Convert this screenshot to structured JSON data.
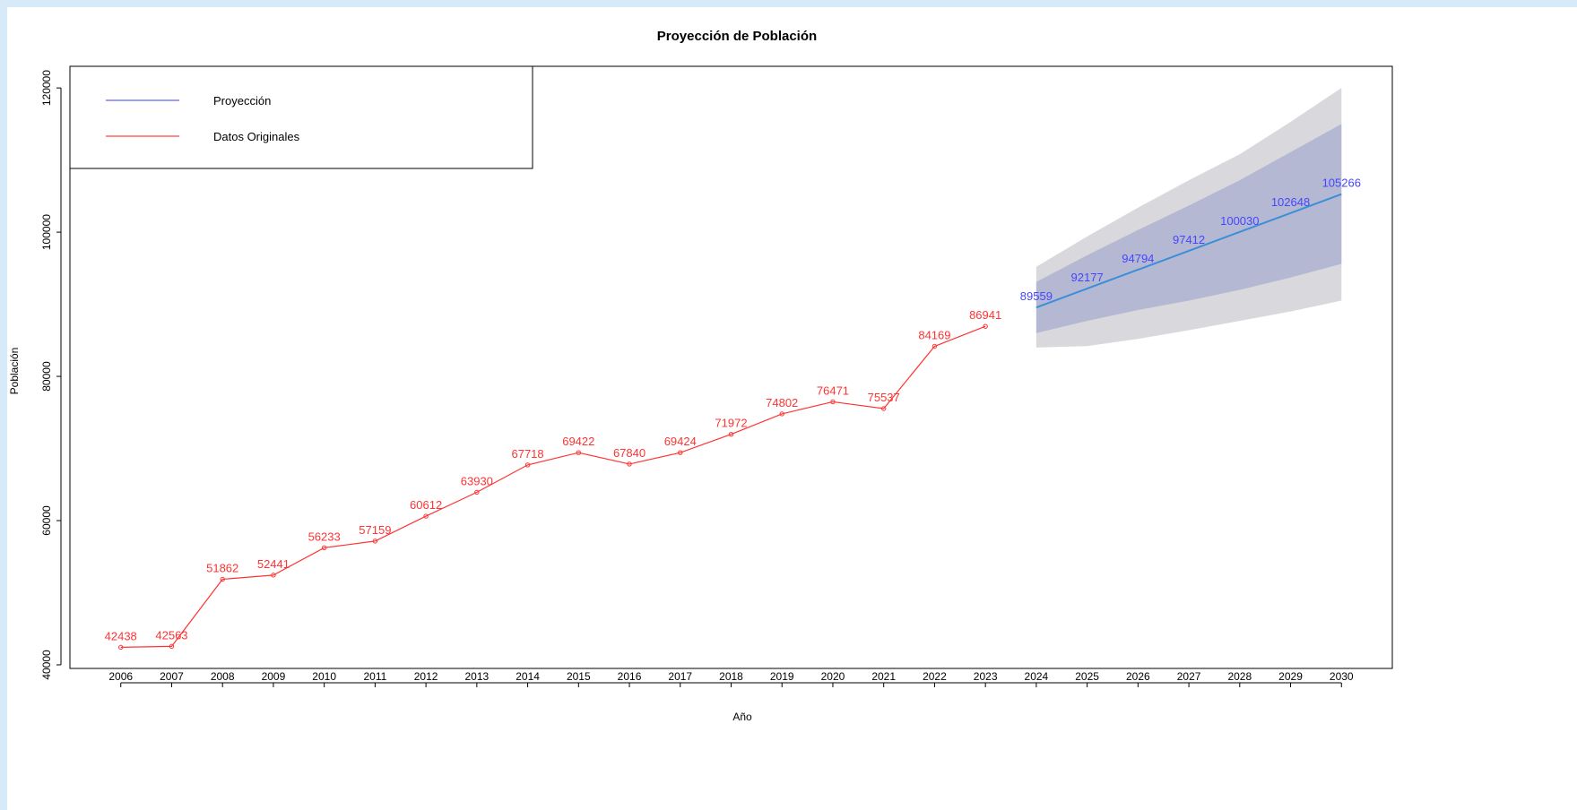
{
  "chart_data": {
    "type": "line",
    "title": "Proyección de Población",
    "xlabel": "Año",
    "ylabel": "Población",
    "xlim": [
      2005,
      2031
    ],
    "ylim": [
      39500,
      123000
    ],
    "xticks": [
      2006,
      2007,
      2008,
      2009,
      2010,
      2011,
      2012,
      2013,
      2014,
      2015,
      2016,
      2017,
      2018,
      2019,
      2020,
      2021,
      2022,
      2023,
      2024,
      2025,
      2026,
      2027,
      2028,
      2029,
      2030
    ],
    "yticks": [
      40000,
      60000,
      80000,
      100000,
      120000
    ],
    "grid": false,
    "legend": {
      "position": "top-left",
      "entries": [
        {
          "label": "Proyección",
          "color": "#6666ff"
        },
        {
          "label": "Datos Originales",
          "color": "#ff4444"
        }
      ]
    },
    "series": [
      {
        "name": "Datos Originales",
        "color": "#ff3333",
        "x": [
          2006,
          2007,
          2008,
          2009,
          2010,
          2011,
          2012,
          2013,
          2014,
          2015,
          2016,
          2017,
          2018,
          2019,
          2020,
          2021,
          2022,
          2023
        ],
        "y": [
          42438,
          42563,
          51862,
          52441,
          56233,
          57159,
          60612,
          63930,
          67718,
          69422,
          67840,
          69424,
          71972,
          74802,
          76471,
          75537,
          84169,
          86941
        ]
      },
      {
        "name": "Proyección",
        "color": "#3a8fd8",
        "label_color": "#4646ff",
        "x": [
          2024,
          2025,
          2026,
          2027,
          2028,
          2029,
          2030
        ],
        "y": [
          89559,
          92177,
          94794,
          97412,
          100030,
          102648,
          105266
        ]
      }
    ],
    "bands": [
      {
        "color": "#d9d9dd",
        "x": [
          2024,
          2025,
          2026,
          2027,
          2028,
          2029,
          2030
        ],
        "lower": [
          84000,
          84200,
          85200,
          86400,
          87700,
          89000,
          90500
        ],
        "upper": [
          95200,
          99400,
          103400,
          107200,
          110800,
          115300,
          120000
        ]
      },
      {
        "color": "#b4b8d2",
        "x": [
          2024,
          2025,
          2026,
          2027,
          2028,
          2029,
          2030
        ],
        "lower": [
          86000,
          87700,
          89200,
          90500,
          92000,
          93700,
          95600
        ],
        "upper": [
          93100,
          96800,
          100300,
          103700,
          107200,
          111100,
          115000
        ]
      }
    ]
  }
}
